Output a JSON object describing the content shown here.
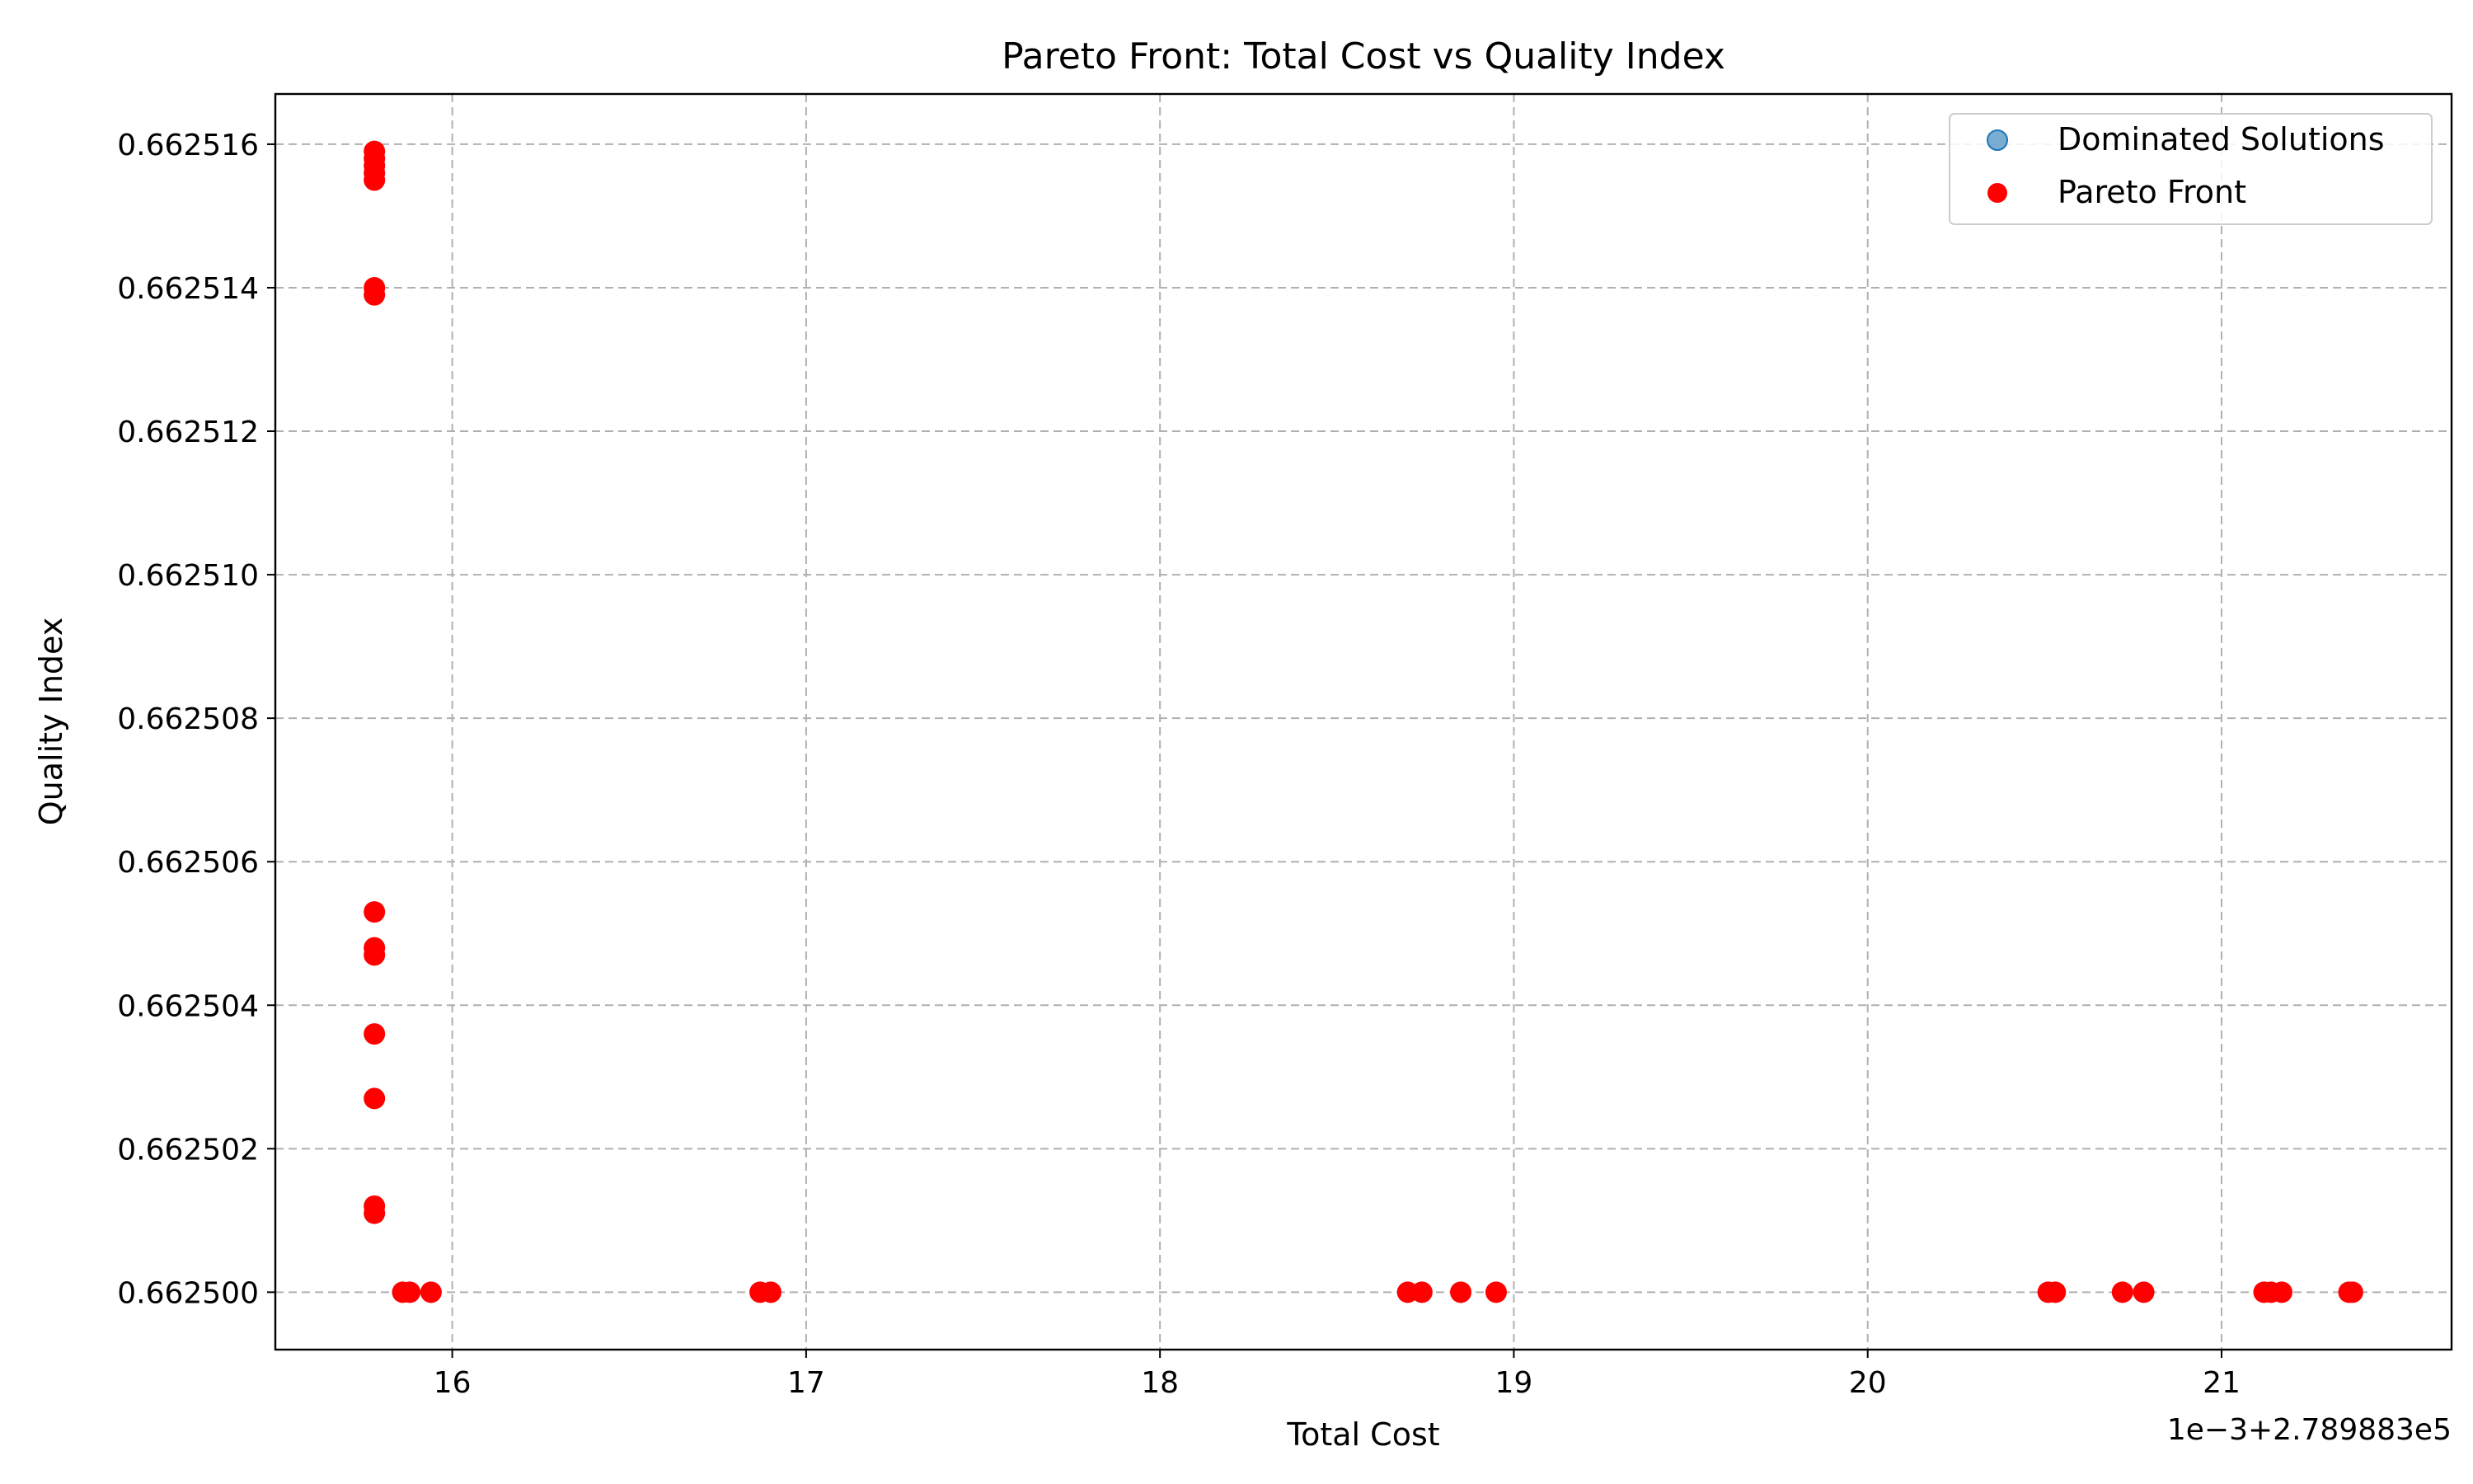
{
  "chart_data": {
    "type": "scatter",
    "title": "Pareto Front: Total Cost vs Quality Index",
    "xlabel": "Total Cost",
    "ylabel": "Quality Index",
    "x_offset_text": "1e−3+2.789883e5",
    "x_ticks": [
      "16",
      "17",
      "18",
      "19",
      "20",
      "21"
    ],
    "y_ticks": [
      "0.662500",
      "0.662502",
      "0.662504",
      "0.662506",
      "0.662508",
      "0.662510",
      "0.662512",
      "0.662514",
      "0.662516"
    ],
    "xlim": [
      15.5,
      21.65
    ],
    "ylim": [
      0.6624992,
      0.6625167
    ],
    "grid": true,
    "legend_position": "upper right",
    "series": [
      {
        "name": "Dominated Solutions",
        "color": "#1f77b4",
        "points": []
      },
      {
        "name": "Pareto Front",
        "color": "#ff0000",
        "points": [
          {
            "x": 15.78,
            "y": 0.6625159
          },
          {
            "x": 15.78,
            "y": 0.6625158
          },
          {
            "x": 15.78,
            "y": 0.6625157
          },
          {
            "x": 15.78,
            "y": 0.6625156
          },
          {
            "x": 15.78,
            "y": 0.6625155
          },
          {
            "x": 15.78,
            "y": 0.662514
          },
          {
            "x": 15.78,
            "y": 0.6625139
          },
          {
            "x": 15.78,
            "y": 0.6625053
          },
          {
            "x": 15.78,
            "y": 0.6625048
          },
          {
            "x": 15.78,
            "y": 0.6625047
          },
          {
            "x": 15.78,
            "y": 0.6625036
          },
          {
            "x": 15.78,
            "y": 0.6625027
          },
          {
            "x": 15.78,
            "y": 0.6625012
          },
          {
            "x": 15.78,
            "y": 0.6625011
          },
          {
            "x": 15.86,
            "y": 0.6625
          },
          {
            "x": 15.88,
            "y": 0.6625
          },
          {
            "x": 15.94,
            "y": 0.6625
          },
          {
            "x": 16.87,
            "y": 0.6625
          },
          {
            "x": 16.9,
            "y": 0.6625
          },
          {
            "x": 18.7,
            "y": 0.6625
          },
          {
            "x": 18.74,
            "y": 0.6625
          },
          {
            "x": 18.85,
            "y": 0.6625
          },
          {
            "x": 18.95,
            "y": 0.6625
          },
          {
            "x": 20.51,
            "y": 0.6625
          },
          {
            "x": 20.53,
            "y": 0.6625
          },
          {
            "x": 20.72,
            "y": 0.6625
          },
          {
            "x": 20.78,
            "y": 0.6625
          },
          {
            "x": 21.12,
            "y": 0.6625
          },
          {
            "x": 21.14,
            "y": 0.6625
          },
          {
            "x": 21.17,
            "y": 0.6625
          },
          {
            "x": 21.36,
            "y": 0.6625
          },
          {
            "x": 21.37,
            "y": 0.6625
          }
        ]
      }
    ]
  }
}
